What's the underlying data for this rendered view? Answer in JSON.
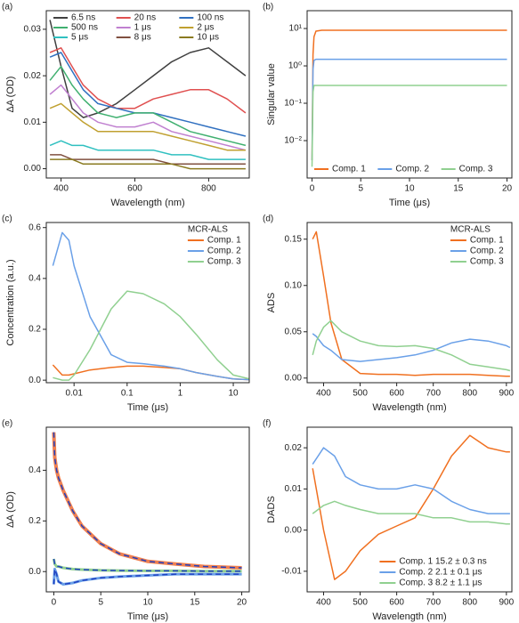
{
  "chart_data": [
    {
      "type": "line",
      "panel_label": "(a)",
      "xlabel": "Wavelength (nm)",
      "ylabel": "ΔA (OD)",
      "x": [
        370,
        400,
        430,
        460,
        500,
        550,
        600,
        650,
        700,
        750,
        800,
        850,
        900
      ],
      "xlim": [
        360,
        910
      ],
      "ylim": [
        -0.002,
        0.034
      ],
      "xticks": [
        400,
        600,
        800
      ],
      "yticks": [
        {
          "value": 0,
          "label": "0.00"
        },
        {
          "value": 0.01,
          "label": "0.01"
        },
        {
          "value": 0.02,
          "label": "0.02"
        },
        {
          "value": 0.03,
          "label": "0.03"
        }
      ],
      "legend": "top",
      "legend_columns": 3,
      "series": [
        {
          "name": "6.5 ns",
          "color": "#404040",
          "values": [
            0.032,
            0.022,
            0.013,
            0.011,
            0.012,
            0.014,
            0.017,
            0.02,
            0.023,
            0.025,
            0.026,
            0.023,
            0.02
          ]
        },
        {
          "name": "20 ns",
          "color": "#e05050",
          "values": [
            0.025,
            0.026,
            0.022,
            0.018,
            0.015,
            0.013,
            0.013,
            0.015,
            0.016,
            0.017,
            0.017,
            0.015,
            0.012
          ]
        },
        {
          "name": "100 ns",
          "color": "#3070c0",
          "values": [
            0.024,
            0.025,
            0.021,
            0.017,
            0.014,
            0.013,
            0.012,
            0.012,
            0.011,
            0.01,
            0.009,
            0.008,
            0.007
          ]
        },
        {
          "name": "500 ns",
          "color": "#40b070",
          "values": [
            0.019,
            0.022,
            0.018,
            0.015,
            0.012,
            0.011,
            0.012,
            0.012,
            0.01,
            0.008,
            0.007,
            0.006,
            0.005
          ]
        },
        {
          "name": "1 μs",
          "color": "#c080d0",
          "values": [
            0.016,
            0.018,
            0.015,
            0.012,
            0.01,
            0.009,
            0.009,
            0.01,
            0.008,
            0.007,
            0.006,
            0.005,
            0.004
          ]
        },
        {
          "name": "2 μs",
          "color": "#c0a030",
          "values": [
            0.013,
            0.014,
            0.012,
            0.01,
            0.008,
            0.008,
            0.008,
            0.008,
            0.007,
            0.006,
            0.005,
            0.004,
            0.004
          ]
        },
        {
          "name": "5 μs",
          "color": "#30c0c0",
          "values": [
            0.005,
            0.006,
            0.005,
            0.005,
            0.004,
            0.004,
            0.004,
            0.004,
            0.003,
            0.003,
            0.002,
            0.002,
            0.002
          ]
        },
        {
          "name": "8 μs",
          "color": "#805040",
          "values": [
            0.003,
            0.003,
            0.002,
            0.002,
            0.002,
            0.002,
            0.002,
            0.002,
            0.001,
            0.001,
            0.001,
            0.001,
            0.001
          ]
        },
        {
          "name": "10 μs",
          "color": "#8a7a20",
          "values": [
            0.002,
            0.002,
            0.002,
            0.001,
            0.001,
            0.001,
            0.001,
            0.001,
            0.001,
            0,
            0,
            0,
            0
          ]
        }
      ]
    },
    {
      "type": "line",
      "panel_label": "(b)",
      "xlabel": "Time (μs)",
      "ylabel": "Singular value",
      "x": [
        0,
        0.1,
        0.2,
        0.4,
        1,
        2,
        5,
        10,
        15,
        20
      ],
      "xlim": [
        -0.5,
        20.5
      ],
      "ylim": [
        0.001,
        30
      ],
      "ylog": true,
      "xticks": [
        0,
        5,
        10,
        15,
        20
      ],
      "yticks": [
        {
          "value": 0.01,
          "label": "10⁻²"
        },
        {
          "value": 0.1,
          "label": "10⁻¹"
        },
        {
          "value": 1,
          "label": "10⁰"
        },
        {
          "value": 10,
          "label": "10¹"
        }
      ],
      "legend": "bottom",
      "legend_columns": 3,
      "series": [
        {
          "name": "Comp. 1",
          "color": "#f07020",
          "values": [
            0.003,
            2,
            6,
            8.5,
            9,
            9,
            9,
            9,
            9,
            9
          ]
        },
        {
          "name": "Comp. 2",
          "color": "#6aa0e8",
          "values": [
            0.003,
            0.8,
            1.4,
            1.5,
            1.5,
            1.5,
            1.5,
            1.5,
            1.5,
            1.5
          ]
        },
        {
          "name": "Comp. 3",
          "color": "#90d090",
          "values": [
            0.002,
            0.2,
            0.3,
            0.3,
            0.3,
            0.3,
            0.3,
            0.3,
            0.3,
            0.3
          ]
        }
      ]
    },
    {
      "type": "line",
      "panel_label": "(c)",
      "xlabel": "Time (μs)",
      "ylabel": "Concentration (a.u.)",
      "x": [
        0.004,
        0.006,
        0.008,
        0.01,
        0.02,
        0.05,
        0.1,
        0.2,
        0.5,
        1,
        2,
        5,
        10,
        20
      ],
      "xlim": [
        0.003,
        20
      ],
      "xlog": true,
      "ylim": [
        -0.01,
        0.62
      ],
      "xticks": [
        0.01,
        0.1,
        1,
        10
      ],
      "yticks": [
        {
          "value": 0,
          "label": "0.0"
        },
        {
          "value": 0.2,
          "label": "0.2"
        },
        {
          "value": 0.4,
          "label": "0.4"
        },
        {
          "value": 0.6,
          "label": "0.6"
        }
      ],
      "legend": "top-right",
      "legend_title": "MCR-ALS",
      "series": [
        {
          "name": "Comp. 1",
          "color": "#f07020",
          "values": [
            0.06,
            0.02,
            0.02,
            0.025,
            0.04,
            0.05,
            0.055,
            0.055,
            0.05,
            0.045,
            0.03,
            0.015,
            0.005,
            0.002
          ]
        },
        {
          "name": "Comp. 2",
          "color": "#6aa0e8",
          "values": [
            0.45,
            0.58,
            0.55,
            0.45,
            0.25,
            0.1,
            0.07,
            0.065,
            0.055,
            0.045,
            0.03,
            0.015,
            0.005,
            0.002
          ]
        },
        {
          "name": "Comp. 3",
          "color": "#90d090",
          "values": [
            0.01,
            0,
            0,
            0.02,
            0.12,
            0.28,
            0.35,
            0.34,
            0.3,
            0.25,
            0.18,
            0.08,
            0.02,
            0.005
          ]
        }
      ]
    },
    {
      "type": "line",
      "panel_label": "(d)",
      "xlabel": "Wavelength (nm)",
      "ylabel": "ADS",
      "x": [
        370,
        380,
        400,
        420,
        450,
        500,
        550,
        600,
        650,
        700,
        750,
        800,
        850,
        900,
        910
      ],
      "xlim": [
        355,
        915
      ],
      "ylim": [
        -0.005,
        0.168
      ],
      "xticks": [
        400,
        500,
        600,
        700,
        800,
        900
      ],
      "yticks": [
        {
          "value": 0,
          "label": "0.00"
        },
        {
          "value": 0.05,
          "label": "0.05"
        },
        {
          "value": 0.1,
          "label": "0.10"
        },
        {
          "value": 0.15,
          "label": "0.15"
        }
      ],
      "legend": "top-right",
      "legend_title": "MCR-ALS",
      "series": [
        {
          "name": "Comp. 1",
          "color": "#f07020",
          "values": [
            0.15,
            0.158,
            0.11,
            0.06,
            0.02,
            0.005,
            0.004,
            0.004,
            0.003,
            0.004,
            0.004,
            0.004,
            0.003,
            0.002,
            0.002
          ]
        },
        {
          "name": "Comp. 2",
          "color": "#6aa0e8",
          "values": [
            0.048,
            0.045,
            0.035,
            0.03,
            0.02,
            0.018,
            0.02,
            0.022,
            0.025,
            0.03,
            0.038,
            0.042,
            0.04,
            0.035,
            0.033
          ]
        },
        {
          "name": "Comp. 3",
          "color": "#90d090",
          "values": [
            0.025,
            0.04,
            0.055,
            0.062,
            0.05,
            0.04,
            0.035,
            0.034,
            0.035,
            0.032,
            0.025,
            0.015,
            0.012,
            0.009,
            0.008
          ]
        }
      ]
    },
    {
      "type": "line",
      "panel_label": "(e)",
      "xlabel": "Time (μs)",
      "ylabel": "ΔA (OD)",
      "x": [
        0,
        0.1,
        0.3,
        0.5,
        1,
        2,
        3,
        5,
        7,
        10,
        13,
        16,
        20
      ],
      "xlim": [
        -0.8,
        20.8
      ],
      "ylim": [
        -0.08,
        0.57
      ],
      "xticks": [
        0,
        5,
        10,
        15,
        20
      ],
      "yticks": [
        {
          "value": 0,
          "label": "0.0"
        },
        {
          "value": 0.2,
          "label": "0.2"
        },
        {
          "value": 0.4,
          "label": "0.4"
        }
      ],
      "series": [
        {
          "color": "#f08050",
          "width": 4,
          "values": [
            0.55,
            0.45,
            0.4,
            0.37,
            0.32,
            0.24,
            0.18,
            0.11,
            0.07,
            0.04,
            0.03,
            0.02,
            0.015
          ]
        },
        {
          "color": "#90d090",
          "width": 3,
          "values": [
            0.05,
            0.03,
            0.02,
            0.02,
            0.015,
            0.01,
            0.008,
            0.005,
            0.004,
            0.003,
            0.003,
            0.002,
            0.002
          ]
        },
        {
          "color": "#6aa0e8",
          "width": 3,
          "values": [
            -0.05,
            0.01,
            -0.01,
            -0.04,
            -0.05,
            -0.045,
            -0.035,
            -0.025,
            -0.02,
            -0.015,
            -0.01,
            -0.01,
            -0.01
          ]
        },
        {
          "color": "#2040c0",
          "dash": true,
          "values": [
            0.55,
            0.45,
            0.4,
            0.37,
            0.32,
            0.24,
            0.18,
            0.11,
            0.07,
            0.04,
            0.03,
            0.02,
            0.015
          ]
        },
        {
          "color": "#2040c0",
          "dash": true,
          "values": [
            0.05,
            0.03,
            0.02,
            0.02,
            0.015,
            0.01,
            0.008,
            0.005,
            0.004,
            0.003,
            0.003,
            0.002,
            0.002
          ]
        },
        {
          "color": "#2040c0",
          "dash": true,
          "values": [
            -0.05,
            0.01,
            -0.01,
            -0.04,
            -0.05,
            -0.045,
            -0.035,
            -0.025,
            -0.02,
            -0.015,
            -0.01,
            -0.01,
            -0.01
          ]
        }
      ]
    },
    {
      "type": "line",
      "panel_label": "(f)",
      "xlabel": "Wavelength (nm)",
      "ylabel": "DADS",
      "x": [
        370,
        400,
        430,
        460,
        500,
        550,
        600,
        650,
        700,
        750,
        800,
        850,
        900,
        910
      ],
      "xlim": [
        355,
        915
      ],
      "ylim": [
        -0.015,
        0.025
      ],
      "xticks": [
        400,
        500,
        600,
        700,
        800,
        900
      ],
      "yticks": [
        {
          "value": -0.01,
          "label": "-0.01"
        },
        {
          "value": 0,
          "label": "0.00"
        },
        {
          "value": 0.01,
          "label": "0.01"
        },
        {
          "value": 0.02,
          "label": "0.02"
        }
      ],
      "legend": "bottom-right",
      "series": [
        {
          "name": "Comp. 1  15.2 ± 0.3 ns",
          "color": "#f07020",
          "values": [
            0.015,
            0.0,
            -0.012,
            -0.01,
            -0.005,
            -0.001,
            0.001,
            0.003,
            0.01,
            0.018,
            0.023,
            0.02,
            0.019,
            0.019
          ]
        },
        {
          "name": "Comp. 2  2.1 ± 0.1 μs",
          "color": "#6aa0e8",
          "values": [
            0.016,
            0.02,
            0.018,
            0.013,
            0.011,
            0.01,
            0.01,
            0.011,
            0.01,
            0.007,
            0.005,
            0.004,
            0.004,
            0.004
          ]
        },
        {
          "name": "Comp. 3  8.2 ± 1.1 μs",
          "color": "#90d090",
          "values": [
            0.004,
            0.006,
            0.007,
            0.006,
            0.005,
            0.004,
            0.004,
            0.004,
            0.003,
            0.003,
            0.002,
            0.002,
            0.0015,
            0.0015
          ]
        }
      ]
    }
  ]
}
